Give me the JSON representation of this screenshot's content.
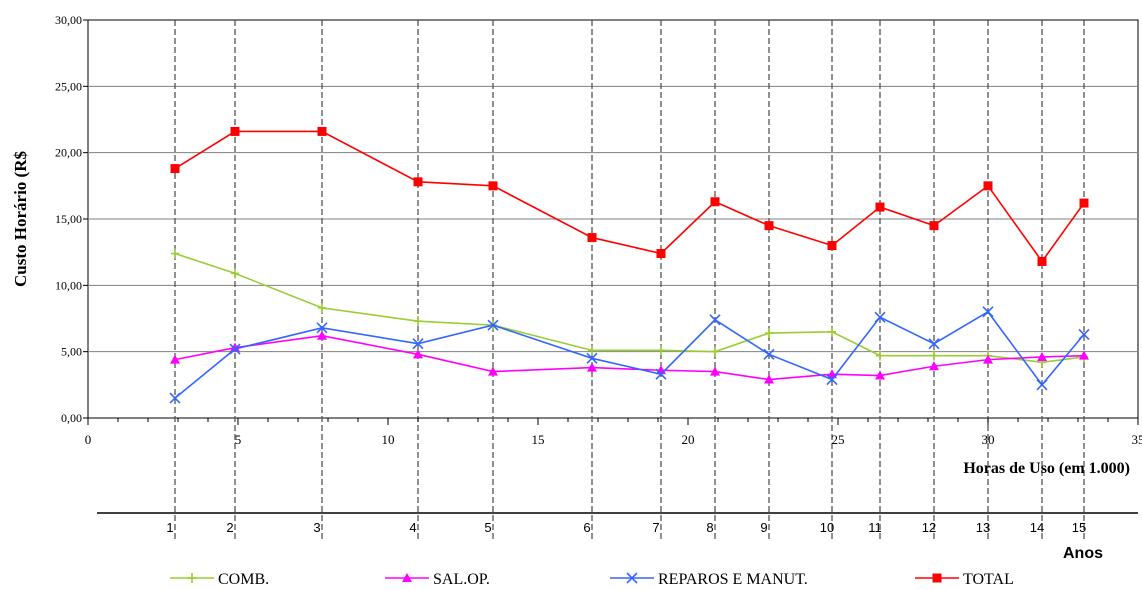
{
  "chart_data": {
    "type": "line",
    "ylabel": "Custo Horário (R$",
    "xlabel": "Horas de Uso (em 1.000)",
    "secondary_xlabel": "Anos",
    "xlim": [
      0,
      35
    ],
    "ylim": [
      0,
      30
    ],
    "x_ticks": [
      "0",
      "5",
      "10",
      "15",
      "20",
      "25",
      "30",
      "35"
    ],
    "y_ticks": [
      "0,00",
      "5,00",
      "10,00",
      "15,00",
      "20,00",
      "25,00",
      "30,00"
    ],
    "years": [
      "1",
      "2",
      "3",
      "4",
      "5",
      "6",
      "7",
      "8",
      "9",
      "10",
      "11",
      "12",
      "13",
      "14",
      "15"
    ],
    "x": [
      2.9,
      4.9,
      7.8,
      11.0,
      13.5,
      16.8,
      19.1,
      20.9,
      22.7,
      24.8,
      26.4,
      28.2,
      30.0,
      31.8,
      33.2
    ],
    "series": [
      {
        "name": "COMB.",
        "color": "#9acd32",
        "marker": "plus",
        "values": [
          12.4,
          10.9,
          8.3,
          7.3,
          7.0,
          5.1,
          5.1,
          5.0,
          6.4,
          6.5,
          4.7,
          4.7,
          4.7,
          4.2,
          4.6
        ]
      },
      {
        "name": "SAL.OP.",
        "color": "#ff00ff",
        "marker": "triangle",
        "values": [
          4.4,
          5.3,
          6.2,
          4.8,
          3.5,
          3.8,
          3.6,
          3.5,
          2.9,
          3.3,
          3.2,
          3.9,
          4.4,
          4.6,
          4.7
        ]
      },
      {
        "name": "REPAROS E MANUT.",
        "color": "#3366ff",
        "marker": "x",
        "values": [
          1.5,
          5.2,
          6.8,
          5.6,
          7.0,
          4.5,
          3.3,
          7.4,
          4.8,
          2.9,
          7.6,
          5.6,
          8.0,
          2.5,
          6.3
        ]
      },
      {
        "name": "TOTAL",
        "color": "#ff0000",
        "marker": "square",
        "values": [
          18.8,
          21.6,
          21.6,
          17.8,
          17.5,
          13.6,
          12.4,
          16.3,
          14.5,
          13.0,
          15.9,
          14.5,
          17.5,
          11.8,
          16.2
        ]
      }
    ],
    "grid": true,
    "legend_position": "bottom"
  }
}
